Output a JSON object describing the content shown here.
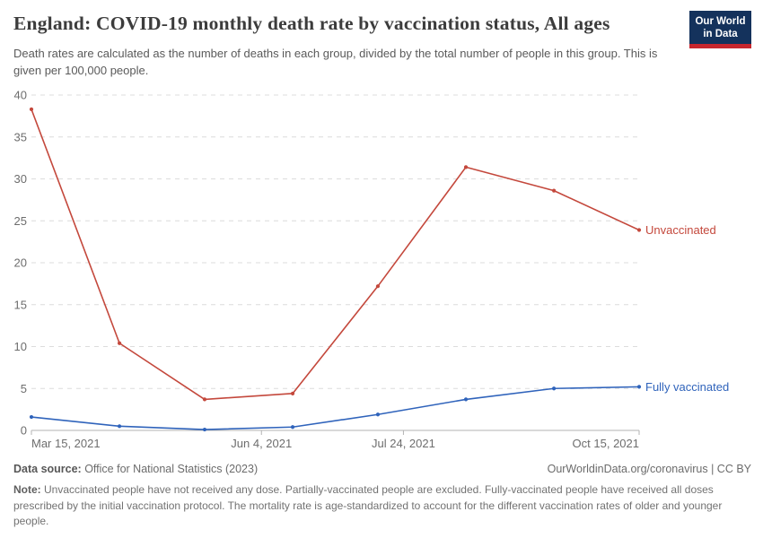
{
  "header": {
    "title": "England: COVID-19 monthly death rate by vaccination status, All ages",
    "logo": {
      "line1": "Our World",
      "line2": "in Data",
      "bg_color": "#14325c",
      "accent_color": "#c7262d"
    }
  },
  "subtitle": "Death rates are calculated as the number of deaths in each group, divided by the total number of people in this group. This is given per 100,000 people.",
  "chart_data": {
    "type": "line",
    "title": "England: COVID-19 monthly death rate by vaccination status, All ages",
    "ylabel": "",
    "xlabel": "",
    "ylim": [
      0,
      40
    ],
    "y_ticks": [
      0,
      5,
      10,
      15,
      20,
      25,
      30,
      35,
      40
    ],
    "grid": "horizontal dashed",
    "legend_position": "end-of-line labels",
    "x_unit": "days since Mar 15, 2021 (monthly points)",
    "x_points": [
      0,
      31,
      61,
      92,
      122,
      153,
      184,
      214
    ],
    "x_ticks": [
      {
        "label": "Mar 15, 2021",
        "t": 0,
        "anchor": "start"
      },
      {
        "label": "Jun 4, 2021",
        "t": 81,
        "anchor": "middle"
      },
      {
        "label": "Jul 24, 2021",
        "t": 131,
        "anchor": "middle"
      },
      {
        "label": "Oct 15, 2021",
        "t": 214,
        "anchor": "end"
      }
    ],
    "series": [
      {
        "name": "Unvaccinated",
        "color": "#c4483c",
        "values": [
          38.3,
          10.4,
          3.7,
          4.4,
          17.2,
          31.4,
          28.6,
          23.9
        ]
      },
      {
        "name": "Fully vaccinated",
        "color": "#2f63bb",
        "values": [
          1.6,
          0.5,
          0.1,
          0.4,
          1.9,
          3.7,
          5.0,
          5.2
        ]
      }
    ],
    "style": {
      "grid_color": "#dcdcdc",
      "axis_color": "#b3b3b3",
      "tick_label_color": "#6d6d6d"
    }
  },
  "footer": {
    "source_label": "Data source:",
    "source_text": " Office for National Statistics (2023)",
    "credit": "OurWorldinData.org/coronavirus | CC BY",
    "note_label": "Note:",
    "note_text": " Unvaccinated people have not received any dose. Partially-vaccinated people are excluded. Fully-vaccinated people have received all doses prescribed by the initial vaccination protocol. The mortality rate is age-standardized to account for the different vaccination rates of older and younger people."
  }
}
